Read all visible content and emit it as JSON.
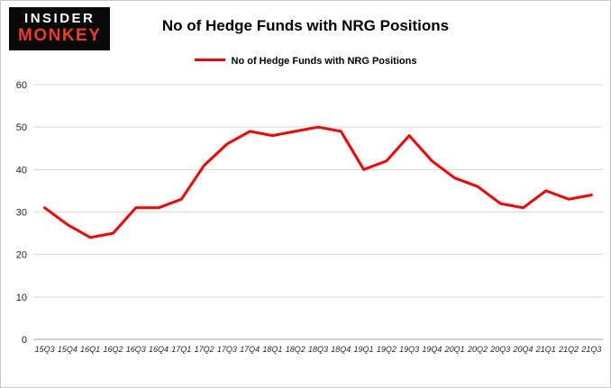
{
  "logo": {
    "line1": "INSIDER",
    "line2": "MONKEY"
  },
  "header": {
    "title": "No of Hedge Funds with NRG Positions"
  },
  "legend": {
    "label": "No of Hedge Funds with NRG Positions",
    "color": "#ff0000"
  },
  "colors": {
    "line": "#ff0000",
    "grid": "#d9d9d9",
    "axis": "#a6a6a6",
    "background": "#ffffff",
    "logo_accent": "#ee3a26"
  },
  "chart_data": {
    "type": "line",
    "title": "No of Hedge Funds with NRG Positions",
    "xlabel": "",
    "ylabel": "",
    "ylim": [
      0,
      60
    ],
    "ytick_interval": 10,
    "grid": true,
    "legend_position": "top",
    "categories": [
      "15Q3",
      "15Q4",
      "16Q1",
      "16Q2",
      "16Q3",
      "16Q4",
      "17Q1",
      "17Q2",
      "17Q3",
      "17Q4",
      "18Q1",
      "18Q2",
      "18Q3",
      "18Q4",
      "19Q1",
      "19Q2",
      "19Q3",
      "19Q4",
      "20Q1",
      "20Q2",
      "20Q3",
      "20Q4",
      "21Q1",
      "21Q2",
      "21Q3"
    ],
    "series": [
      {
        "name": "No of Hedge Funds with NRG Positions",
        "color": "#ff0000",
        "values": [
          31,
          27,
          24,
          25,
          31,
          31,
          33,
          41,
          46,
          49,
          48,
          49,
          50,
          49,
          40,
          42,
          48,
          42,
          38,
          36,
          32,
          31,
          35,
          33,
          34
        ]
      }
    ]
  }
}
